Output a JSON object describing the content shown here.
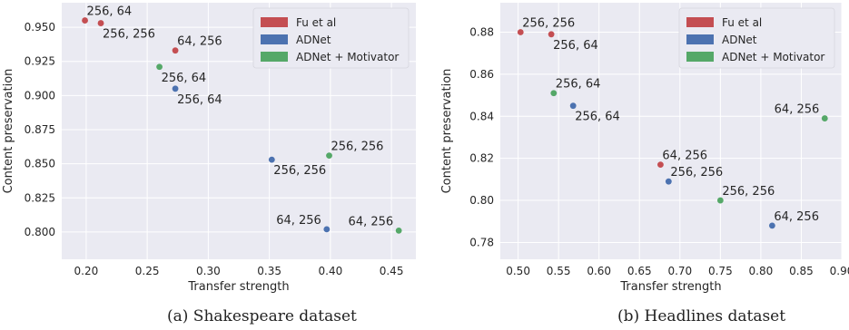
{
  "chart_data": [
    {
      "type": "scatter",
      "xlabel": "Transfer strength",
      "ylabel": "Content preservation",
      "caption": "(a) Shakespeare dataset",
      "xlim": [
        0.18,
        0.47
      ],
      "ylim": [
        0.78,
        0.968
      ],
      "xticks": [
        0.2,
        0.25,
        0.3,
        0.35,
        0.4,
        0.45
      ],
      "xtick_labels": [
        "0.20",
        "0.25",
        "0.30",
        "0.35",
        "0.40",
        "0.45"
      ],
      "yticks": [
        0.8,
        0.825,
        0.85,
        0.875,
        0.9,
        0.925,
        0.95
      ],
      "ytick_labels": [
        "0.800",
        "0.825",
        "0.850",
        "0.875",
        "0.900",
        "0.925",
        "0.950"
      ],
      "grid": true,
      "legend": "top-right",
      "series": [
        {
          "name": "Fu et al",
          "color": "#c44e52",
          "points": [
            {
              "x": 0.199,
              "y": 0.955,
              "label": "256, 64",
              "label_pos": "above-right"
            },
            {
              "x": 0.212,
              "y": 0.953,
              "label": "256, 256",
              "label_pos": "below-right"
            },
            {
              "x": 0.273,
              "y": 0.933,
              "label": "64, 256",
              "label_pos": "above-right"
            }
          ]
        },
        {
          "name": "ADNet",
          "color": "#4c72b0",
          "points": [
            {
              "x": 0.273,
              "y": 0.905,
              "label": "256, 64",
              "label_pos": "below-right"
            },
            {
              "x": 0.352,
              "y": 0.853,
              "label": "256, 256",
              "label_pos": "below-right"
            },
            {
              "x": 0.397,
              "y": 0.802,
              "label": "64, 256",
              "label_pos": "above-left"
            }
          ]
        },
        {
          "name": "ADNet + Motivator",
          "color": "#55a868",
          "points": [
            {
              "x": 0.26,
              "y": 0.921,
              "label": "256, 64",
              "label_pos": "below-right"
            },
            {
              "x": 0.399,
              "y": 0.856,
              "label": "256, 256",
              "label_pos": "above-right"
            },
            {
              "x": 0.456,
              "y": 0.801,
              "label": "64, 256",
              "label_pos": "above-left"
            }
          ]
        }
      ]
    },
    {
      "type": "scatter",
      "xlabel": "Transfer strength",
      "ylabel": "Content preservation",
      "caption": "(b) Headlines dataset",
      "xlim": [
        0.478,
        0.9
      ],
      "ylim": [
        0.772,
        0.894
      ],
      "xticks": [
        0.5,
        0.55,
        0.6,
        0.65,
        0.7,
        0.75,
        0.8,
        0.85,
        0.9
      ],
      "xtick_labels": [
        "0.50",
        "0.55",
        "0.60",
        "0.65",
        "0.70",
        "0.75",
        "0.80",
        "0.85",
        "0.90"
      ],
      "yticks": [
        0.78,
        0.8,
        0.82,
        0.84,
        0.86,
        0.88
      ],
      "ytick_labels": [
        "0.78",
        "0.80",
        "0.82",
        "0.84",
        "0.86",
        "0.88"
      ],
      "grid": true,
      "legend": "top-right",
      "series": [
        {
          "name": "Fu et al",
          "color": "#c44e52",
          "points": [
            {
              "x": 0.503,
              "y": 0.88,
              "label": "256, 256",
              "label_pos": "above-right"
            },
            {
              "x": 0.541,
              "y": 0.879,
              "label": "256, 64",
              "label_pos": "below-right"
            },
            {
              "x": 0.676,
              "y": 0.817,
              "label": "64, 256",
              "label_pos": "above-right"
            }
          ]
        },
        {
          "name": "ADNet",
          "color": "#4c72b0",
          "points": [
            {
              "x": 0.568,
              "y": 0.845,
              "label": "256, 64",
              "label_pos": "below-right"
            },
            {
              "x": 0.686,
              "y": 0.809,
              "label": "256, 256",
              "label_pos": "above-right"
            },
            {
              "x": 0.814,
              "y": 0.788,
              "label": "64, 256",
              "label_pos": "above-right"
            }
          ]
        },
        {
          "name": "ADNet + Motivator",
          "color": "#55a868",
          "points": [
            {
              "x": 0.544,
              "y": 0.851,
              "label": "256, 64",
              "label_pos": "above-right"
            },
            {
              "x": 0.75,
              "y": 0.8,
              "label": "256, 256",
              "label_pos": "above-right"
            },
            {
              "x": 0.879,
              "y": 0.839,
              "label": "64, 256",
              "label_pos": "above-left"
            }
          ]
        }
      ]
    }
  ]
}
